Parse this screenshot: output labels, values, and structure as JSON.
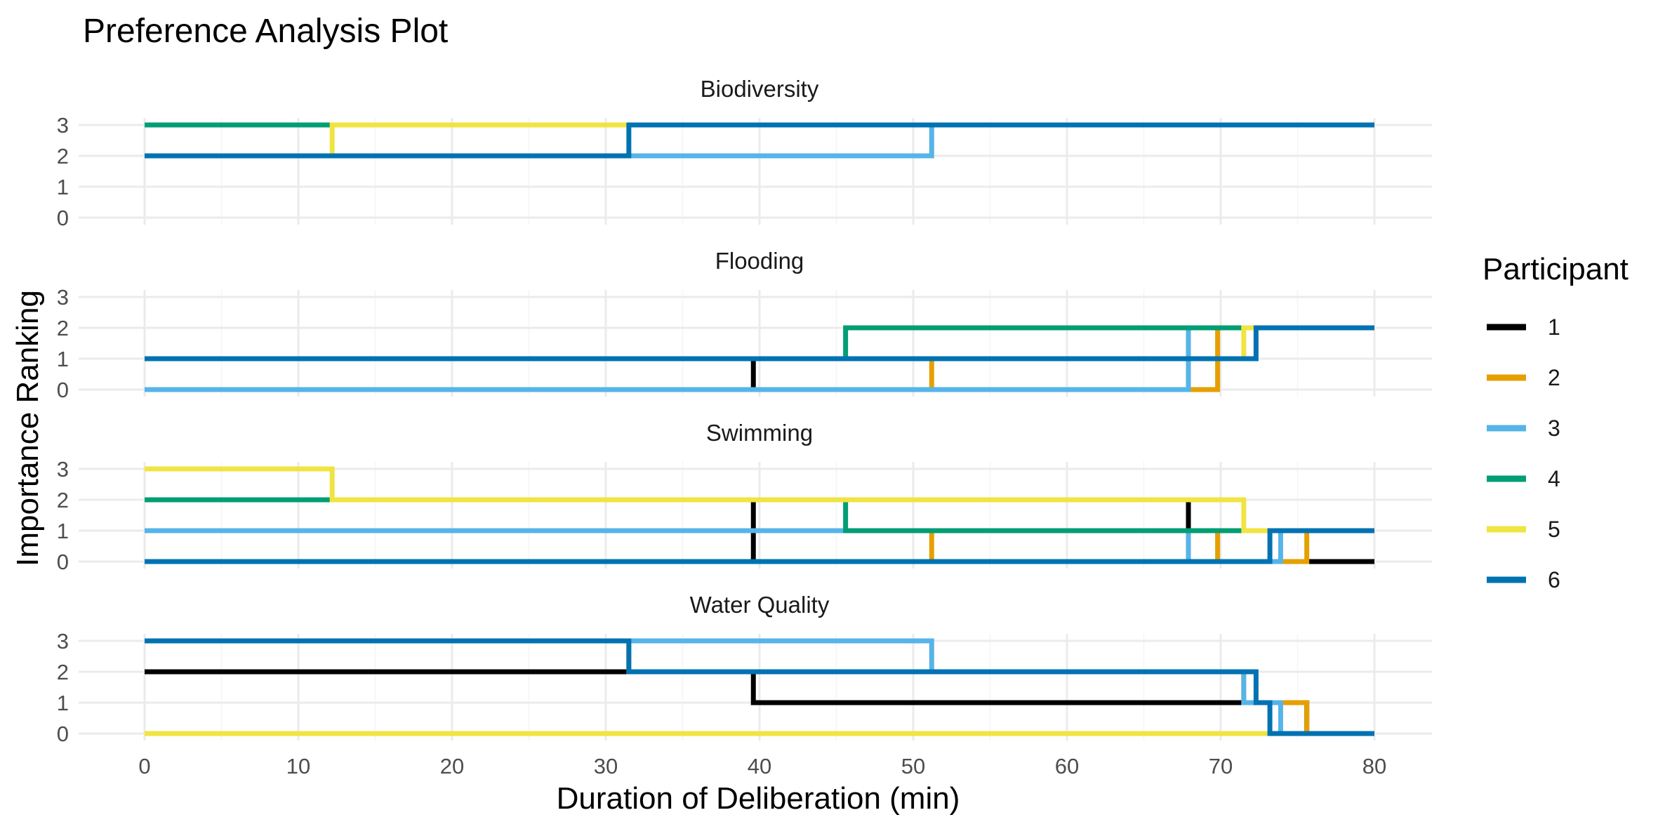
{
  "chart_data": {
    "type": "line",
    "subtype": "step",
    "title": "Preference Analysis Plot",
    "xlabel": "Duration of Deliberation (min)",
    "ylabel": "Importance Ranking",
    "xlim": [
      0,
      80
    ],
    "ylim": [
      0,
      3
    ],
    "x_ticks": [
      "0",
      "10",
      "20",
      "30",
      "40",
      "50",
      "60",
      "70",
      "80"
    ],
    "y_ticks": [
      "0",
      "1",
      "2",
      "3"
    ],
    "legend": {
      "title": "Participant",
      "position": "right",
      "entries": [
        {
          "label": "1",
          "color": "#000000"
        },
        {
          "label": "2",
          "color": "#E69F00"
        },
        {
          "label": "3",
          "color": "#56B4E9"
        },
        {
          "label": "4",
          "color": "#009E73"
        },
        {
          "label": "5",
          "color": "#F0E442"
        },
        {
          "label": "6",
          "color": "#0072B2"
        }
      ]
    },
    "grid": true,
    "facets": [
      {
        "name": "Biodiversity",
        "series": [
          {
            "participant": "1",
            "x": [
              0,
              80
            ],
            "y": [
              3,
              3
            ]
          },
          {
            "participant": "2",
            "x": [
              0,
              80
            ],
            "y": [
              3,
              3
            ]
          },
          {
            "participant": "3",
            "x": [
              0,
              51.2,
              80
            ],
            "y": [
              2,
              3,
              3
            ]
          },
          {
            "participant": "4",
            "x": [
              0,
              80
            ],
            "y": [
              3,
              3
            ]
          },
          {
            "participant": "5",
            "x": [
              0,
              12.2,
              80
            ],
            "y": [
              2,
              3,
              3
            ]
          },
          {
            "participant": "6",
            "x": [
              0,
              31.5,
              80
            ],
            "y": [
              2,
              3,
              3
            ]
          }
        ]
      },
      {
        "name": "Flooding",
        "series": [
          {
            "participant": "1",
            "x": [
              0,
              39.6,
              67.9,
              80
            ],
            "y": [
              1,
              0,
              2,
              2
            ]
          },
          {
            "participant": "2",
            "x": [
              0,
              51.2,
              69.8,
              80
            ],
            "y": [
              1,
              0,
              2,
              2
            ]
          },
          {
            "participant": "3",
            "x": [
              0,
              67.9,
              80
            ],
            "y": [
              0,
              2,
              2
            ]
          },
          {
            "participant": "4",
            "x": [
              0,
              45.6,
              80
            ],
            "y": [
              1,
              2,
              2
            ]
          },
          {
            "participant": "5",
            "x": [
              0,
              71.5,
              80
            ],
            "y": [
              1,
              2,
              2
            ]
          },
          {
            "participant": "6",
            "x": [
              0,
              72.3,
              80
            ],
            "y": [
              1,
              2,
              2
            ]
          }
        ]
      },
      {
        "name": "Swimming",
        "series": [
          {
            "participant": "1",
            "x": [
              0,
              39.6,
              67.9,
              80
            ],
            "y": [
              0,
              2,
              0,
              0
            ]
          },
          {
            "participant": "2",
            "x": [
              0,
              51.2,
              69.8,
              75.6,
              80
            ],
            "y": [
              0,
              1,
              0,
              1,
              1
            ]
          },
          {
            "participant": "3",
            "x": [
              0,
              67.9,
              73.9,
              80
            ],
            "y": [
              1,
              0,
              1,
              1
            ]
          },
          {
            "participant": "4",
            "x": [
              0,
              45.6,
              80
            ],
            "y": [
              2,
              1,
              1
            ]
          },
          {
            "participant": "5",
            "x": [
              0,
              12.2,
              71.5,
              80
            ],
            "y": [
              3,
              2,
              1,
              1
            ]
          },
          {
            "participant": "6",
            "x": [
              0,
              73.2,
              80
            ],
            "y": [
              0,
              1,
              1
            ]
          }
        ]
      },
      {
        "name": "Water Quality",
        "series": [
          {
            "participant": "1",
            "x": [
              0,
              39.6,
              75.6,
              80
            ],
            "y": [
              2,
              1,
              0,
              0
            ]
          },
          {
            "participant": "2",
            "x": [
              0,
              31.5,
              71.5,
              75.6,
              80
            ],
            "y": [
              3,
              2,
              1,
              0,
              0
            ]
          },
          {
            "participant": "3",
            "x": [
              0,
              51.2,
              71.5,
              73.9,
              80
            ],
            "y": [
              3,
              2,
              1,
              0,
              0
            ]
          },
          {
            "participant": "4",
            "x": [
              0,
              80
            ],
            "y": [
              0,
              0
            ]
          },
          {
            "participant": "5",
            "x": [
              0,
              80
            ],
            "y": [
              0,
              0
            ]
          },
          {
            "participant": "6",
            "x": [
              0,
              31.5,
              72.3,
              73.2,
              80
            ],
            "y": [
              3,
              2,
              1,
              0,
              0
            ]
          }
        ]
      }
    ]
  }
}
